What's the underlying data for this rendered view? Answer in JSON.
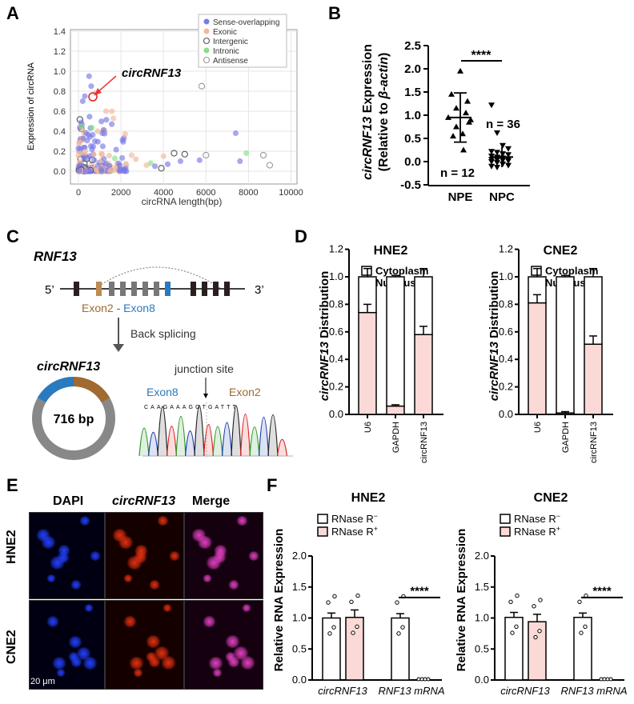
{
  "panel_labels": {
    "a": "A",
    "b": "B",
    "c": "C",
    "d": "D",
    "e": "E",
    "f": "F"
  },
  "panelA": {
    "ylabel": "Expression of circRNA",
    "xlabel": "circRNA length(bp)",
    "xticks": [
      "0",
      "2000",
      "4000",
      "6000",
      "8000",
      "10000"
    ],
    "yticks": [
      "0.0",
      "0.2",
      "0.4",
      "0.6",
      "0.8",
      "1.0",
      "1.2",
      "1.4"
    ],
    "annotation": "circRNF13",
    "legend": [
      {
        "label": "Sense-overlapping",
        "color": "#7a7ae8",
        "filled": true
      },
      {
        "label": "Exonic",
        "color": "#f0b89a",
        "filled": true
      },
      {
        "label": "Intergenic",
        "color": "#555555",
        "filled": false
      },
      {
        "label": "Intronic",
        "color": "#86e086",
        "filled": true
      },
      {
        "label": "Antisense",
        "color": "#999999",
        "filled": false
      }
    ]
  },
  "panelB": {
    "ylabel_line1_gene": "circRNF13",
    "ylabel_line1_rest": " Expression",
    "ylabel_line2_pre": "(Relative to ",
    "ylabel_line2_gene": "β-actin",
    "ylabel_line2_post": ")",
    "yticks": [
      "-0.5",
      "0.0",
      "0.5",
      "1.0",
      "1.5",
      "2.0",
      "2.5"
    ],
    "groups": [
      "NPE",
      "NPC"
    ],
    "n_npe": "n = 12",
    "n_npc": "n = 36",
    "sig": "****"
  },
  "panelC": {
    "gene": "RNF13",
    "five_prime": "5’",
    "three_prime": "3’",
    "exon2": "Exon2",
    "dash": " - ",
    "exon8": "Exon8",
    "back_splicing": "Back splicing",
    "circ_name": "circRNF13",
    "size": "716 bp",
    "junction": "junction site",
    "seq_exon8": "Exon8",
    "seq_exon2": "Exon2",
    "sequence": "CAAGAAAGGTGATTT"
  },
  "panelD": {
    "ylabel_gene": "circRNF13",
    "ylabel_rest": " Distribution",
    "yticks": [
      "0.0",
      "0.2",
      "0.4",
      "0.6",
      "0.8",
      "1.0",
      "1.2"
    ],
    "legend_cyto": "Cytoplasm",
    "legend_nuc": "Nucleus",
    "hne2": {
      "title": "HNE2",
      "categories": [
        "U6",
        "GAPDH",
        "circRNF13"
      ],
      "nucleus": [
        0.74,
        0.06,
        0.58
      ],
      "total": [
        1.0,
        1.0,
        1.0
      ]
    },
    "cne2": {
      "title": "CNE2",
      "categories": [
        "U6",
        "GAPDH",
        "circRNF13"
      ],
      "nucleus": [
        0.81,
        0.01,
        0.51
      ],
      "total": [
        1.0,
        1.0,
        1.0
      ]
    }
  },
  "panelE": {
    "col_dapi": "DAPI",
    "col_circ": "circRNF13",
    "col_merge": "Merge",
    "row_hne2": "HNE2",
    "row_cne2": "CNE2",
    "scale": "20 μm"
  },
  "panelF": {
    "ylabel": "Relative RNA Expression",
    "yticks": [
      "0.0",
      "0.5",
      "1.0",
      "1.5",
      "2.0"
    ],
    "legend_minus": "RNase R",
    "legend_minus_sup": "−",
    "legend_plus": "RNase R",
    "legend_plus_sup": "+",
    "cat1": "circRNF13",
    "cat2": "RNF13 mRNA",
    "sig": "****",
    "hne2": {
      "title": "HNE2",
      "values": [
        1.0,
        1.01,
        1.0,
        0.0
      ]
    },
    "cne2": {
      "title": "CNE2",
      "values": [
        1.01,
        0.94,
        1.01,
        0.0
      ]
    }
  }
}
